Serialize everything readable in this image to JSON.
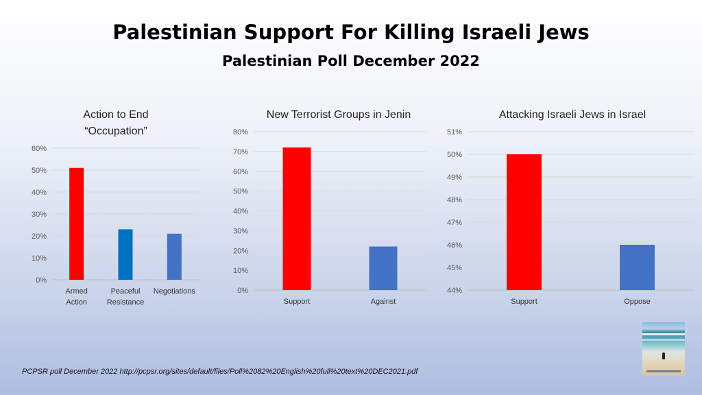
{
  "title": "Palestinian Support For Killing Israeli Jews",
  "subtitle": "Palestinian Poll December 2022",
  "source": "PCPSR poll December 2022 http://pcpsr.org/sites/default/files/Poll%2082%20English%20full%20text%20DEC2021.pdf",
  "colors": {
    "red": "#ff0000",
    "blue_dark": "#0070c0",
    "blue": "#4472c4",
    "grid": "#d9d9d9",
    "axis_text": "#595959"
  },
  "chart_data": [
    {
      "type": "bar",
      "title_lines": [
        "Action to End",
        "“Occupation”"
      ],
      "categories": [
        [
          "Armed",
          "Action"
        ],
        [
          "Peaceful",
          "Resistance"
        ],
        [
          "Negotiations"
        ]
      ],
      "values": [
        51,
        23,
        21
      ],
      "bar_colors": [
        "#ff0000",
        "#0070c0",
        "#4472c4"
      ],
      "ylim": [
        0,
        60
      ],
      "ystep": 10,
      "tick_labels": [
        "0%",
        "10%",
        "20%",
        "30%",
        "40%",
        "50%",
        "60%"
      ],
      "grid": true
    },
    {
      "type": "bar",
      "title_lines": [
        "New Terrorist Groups in Jenin"
      ],
      "categories": [
        [
          "Support"
        ],
        [
          "Against"
        ]
      ],
      "values": [
        72,
        22
      ],
      "bar_colors": [
        "#ff0000",
        "#4472c4"
      ],
      "ylim": [
        0,
        80
      ],
      "ystep": 10,
      "tick_labels": [
        "0%",
        "10%",
        "20%",
        "30%",
        "40%",
        "50%",
        "60%",
        "70%",
        "80%"
      ],
      "grid": true
    },
    {
      "type": "bar",
      "title_lines": [
        "Attacking Israeli Jews in Israel"
      ],
      "categories": [
        [
          "Support"
        ],
        [
          "Oppose"
        ]
      ],
      "values": [
        50,
        46
      ],
      "bar_colors": [
        "#ff0000",
        "#4472c4"
      ],
      "ylim": [
        44,
        51
      ],
      "ystep": 1,
      "tick_labels": [
        "44%",
        "45%",
        "46%",
        "47%",
        "48%",
        "49%",
        "50%",
        "51%"
      ],
      "grid": true
    }
  ]
}
